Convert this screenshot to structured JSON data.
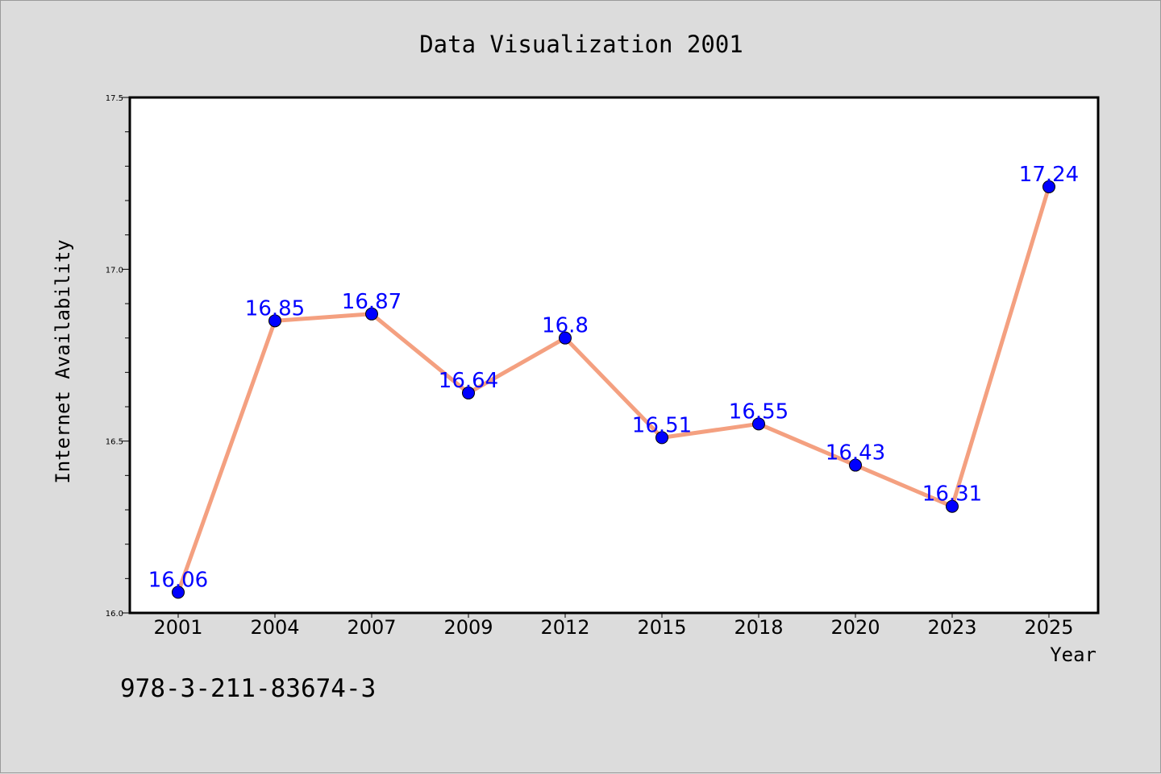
{
  "chart_data": {
    "type": "line",
    "title": "Data Visualization 2001",
    "xlabel": "Year",
    "ylabel": "Internet Availability",
    "categories": [
      "2001",
      "2004",
      "2007",
      "2009",
      "2012",
      "2015",
      "2018",
      "2020",
      "2023",
      "2025"
    ],
    "series": [
      {
        "values": [
          16.06,
          16.85,
          16.87,
          16.64,
          16.8,
          16.51,
          16.55,
          16.43,
          16.31,
          17.24
        ],
        "labels": [
          "16.06",
          "16.85",
          "16.87",
          "16.64",
          "16.8",
          "16.51",
          "16.55",
          "16.43",
          "16.31",
          "17.24"
        ]
      }
    ],
    "ylim": [
      16.0,
      17.5
    ],
    "yticks": [
      "16.0",
      "16.5",
      "17.0",
      "17.5"
    ],
    "line_color": "#f4a080",
    "marker_color": "#0000ff",
    "label_color": "#0000ff",
    "grid": false,
    "legend": false
  },
  "isbn": "978-3-211-83674-3"
}
